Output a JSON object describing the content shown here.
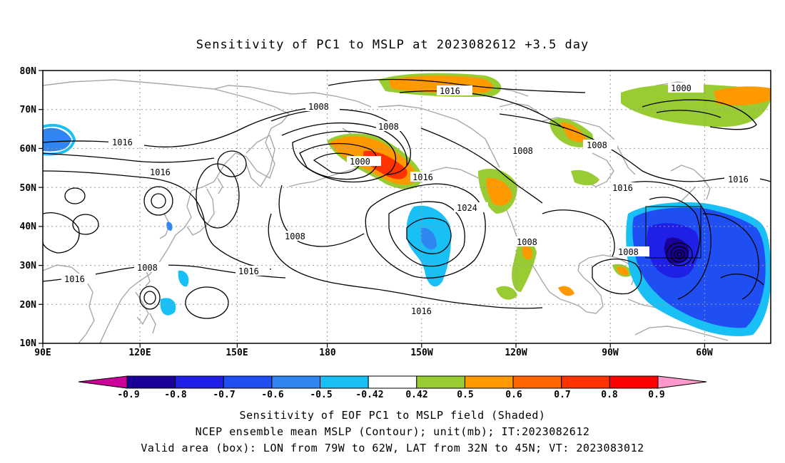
{
  "title": "Sensitivity of PC1 to MSLP at 2023082612 +3.5 day",
  "lat_ticks": [
    "80N",
    "70N",
    "60N",
    "50N",
    "40N",
    "30N",
    "20N",
    "10N"
  ],
  "lon_ticks": [
    "90E",
    "120E",
    "150E",
    "180",
    "150W",
    "120W",
    "90W",
    "60W"
  ],
  "contour_labels": [
    "1016",
    "1008",
    "1008",
    "1000",
    "1016",
    "1000",
    "1016",
    "1016",
    "1024",
    "1008",
    "1008",
    "1016",
    "1008",
    "1016",
    "1008",
    "1016",
    "1016",
    "1016",
    "1008",
    "1008"
  ],
  "colorbar": {
    "labels": [
      "-0.9",
      "-0.8",
      "-0.7",
      "-0.6",
      "-0.5",
      "-0.42",
      "0.42",
      "0.5",
      "0.6",
      "0.7",
      "0.8",
      "0.9"
    ],
    "colors": [
      "#1a0099",
      "#1f1fe6",
      "#1f4ff2",
      "#2f86f2",
      "#19c0f5",
      "#ffffff",
      "#99cc33",
      "#ff9900",
      "#ff6600",
      "#ff3300",
      "#ff0000"
    ],
    "low_extend_color": "#cc0099",
    "high_extend_color": "#ff99cc"
  },
  "caption": {
    "line1": "Sensitivity of EOF PC1 to MSLP field (Shaded)",
    "line2": "NCEP ensemble mean MSLP (Contour); unit(mb); IT:2023082612",
    "line3": "Valid area (box): LON from 79W to 62W, LAT from 32N to 45N; VT: 2023083012"
  }
}
